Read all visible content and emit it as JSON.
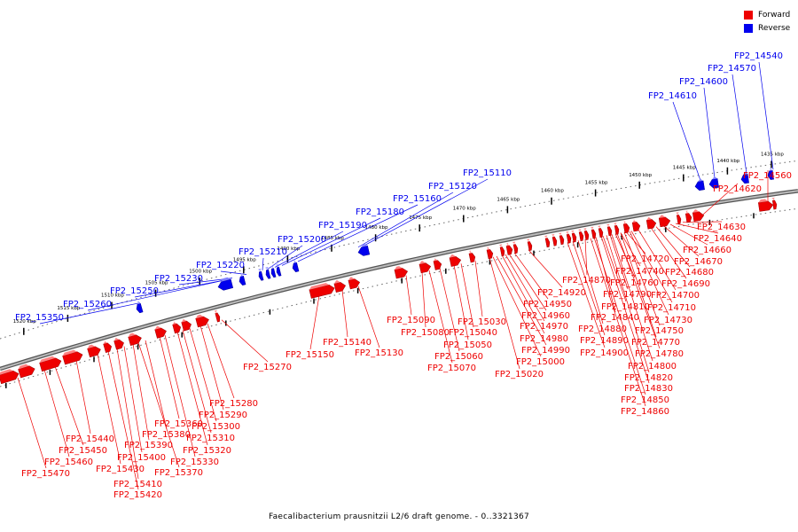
{
  "caption": "Faecalibacterium prausnitzii L2/6 draft genome. - 0..3321367",
  "legend": [
    {
      "label": "Forward",
      "color": "#ee0000"
    },
    {
      "label": "Reverse",
      "color": "#0000ee"
    }
  ],
  "colors": {
    "forward": "#ee0000",
    "reverse": "#0000ee",
    "backbone": "#777777"
  },
  "scale_unit": "kbp",
  "scale_ticks": [
    "1435 kbp",
    "1440 kbp",
    "1445 kbp",
    "1450 kbp",
    "1455 kbp",
    "1460 kbp",
    "1465 kbp",
    "1470 kbp",
    "1475 kbp",
    "1480 kbp",
    "1485 kbp",
    "1490 kbp",
    "1495 kbp",
    "1500 kbp",
    "1505 kbp",
    "1510 kbp",
    "1515 kbp",
    "1520 kbp"
  ],
  "reverse_genes": [
    "FP2_14540",
    "FP2_14570",
    "FP2_14600",
    "FP2_14610",
    "FP2_15110",
    "FP2_15120",
    "FP2_15160",
    "FP2_15180",
    "FP2_15190",
    "FP2_15200",
    "FP2_15210",
    "FP2_15220",
    "FP2_15230",
    "FP2_15250",
    "FP2_15260",
    "FP2_15350"
  ],
  "forward_genes": [
    "FP2_14560",
    "FP2_14620",
    "FP2_14630",
    "FP2_14640",
    "FP2_14660",
    "FP2_14670",
    "FP2_14680",
    "FP2_14690",
    "FP2_14700",
    "FP2_14710",
    "FP2_14720",
    "FP2_14730",
    "FP2_14740",
    "FP2_14750",
    "FP2_14760",
    "FP2_14770",
    "FP2_14780",
    "FP2_14790",
    "FP2_14800",
    "FP2_14810",
    "FP2_14820",
    "FP2_14830",
    "FP2_14840",
    "FP2_14850",
    "FP2_14860",
    "FP2_14870",
    "FP2_14880",
    "FP2_14890",
    "FP2_14900",
    "FP2_14920",
    "FP2_14950",
    "FP2_14960",
    "FP2_14970",
    "FP2_14980",
    "FP2_14990",
    "FP2_15000",
    "FP2_15020",
    "FP2_15030",
    "FP2_15040",
    "FP2_15050",
    "FP2_15060",
    "FP2_15070",
    "FP2_15080",
    "FP2_15090",
    "FP2_15130",
    "FP2_15140",
    "FP2_15150",
    "FP2_15270",
    "FP2_15280",
    "FP2_15290",
    "FP2_15300",
    "FP2_15310",
    "FP2_15320",
    "FP2_15330",
    "FP2_15360",
    "FP2_15370",
    "FP2_15380",
    "FP2_15390",
    "FP2_15400",
    "FP2_15410",
    "FP2_15420",
    "FP2_15430",
    "FP2_15440",
    "FP2_15450",
    "FP2_15460",
    "FP2_15470"
  ]
}
